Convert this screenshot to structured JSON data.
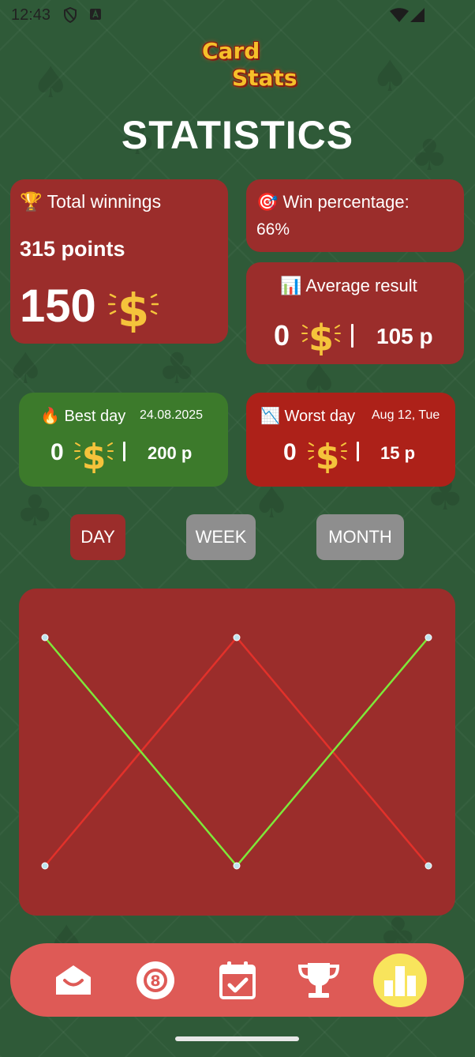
{
  "status_bar": {
    "time": "12:43"
  },
  "logo": {
    "line1": "Card",
    "line2": "Stats"
  },
  "page": {
    "title": "STATISTICS"
  },
  "total_winnings": {
    "emoji": "🏆",
    "label": "Total winnings",
    "points": "315 points",
    "amount": "150"
  },
  "win_percentage": {
    "emoji": "🎯",
    "label": "Win percentage:",
    "value": "66%"
  },
  "average_result": {
    "emoji": "📊",
    "label": "Average result",
    "amount": "0",
    "points": "105 p"
  },
  "best_day": {
    "emoji": "🔥",
    "label": "Best day",
    "date": "24.08.2025",
    "amount": "0",
    "points": "200 p"
  },
  "worst_day": {
    "emoji": "📉",
    "label": "Worst day",
    "date": "Aug 12, Tue",
    "amount": "0",
    "points": "15 p"
  },
  "period_tabs": [
    {
      "label": "DAY",
      "active": true
    },
    {
      "label": "WEEK",
      "active": false
    },
    {
      "label": "MONTH",
      "active": false
    }
  ],
  "chart_data": {
    "type": "line",
    "title": "",
    "xlabel": "",
    "ylabel": "",
    "x": [
      0,
      1,
      2
    ],
    "ylim": [
      0,
      1
    ],
    "grid": false,
    "legend": "none",
    "series": [
      {
        "color": "#7ee83a",
        "values": [
          1,
          0,
          1
        ]
      },
      {
        "color": "#e2312a",
        "values": [
          0,
          1,
          0
        ]
      }
    ],
    "point_color": "#bfe4ee"
  },
  "bottom_nav": [
    {
      "icon": "home-smile-icon",
      "active": false
    },
    {
      "icon": "eight-ball-icon",
      "active": false
    },
    {
      "icon": "calendar-check-icon",
      "active": false
    },
    {
      "icon": "trophy-icon",
      "active": false
    },
    {
      "icon": "bar-chart-icon",
      "active": true
    }
  ],
  "colors": {
    "background": "#2f5a38",
    "card_red": "#9b2d2b",
    "card_bright_red": "#ad2119",
    "card_green": "#3c7a2b",
    "nav_bar": "#de5a56",
    "nav_active": "#f8e45c",
    "dollar": "#f5c33b"
  }
}
